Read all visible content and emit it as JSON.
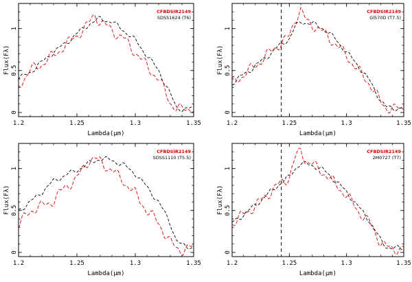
{
  "colors": {
    "target": "#e00000",
    "comparison": "#000000"
  },
  "chart_data": [
    {
      "type": "line",
      "xlabel": "Lambda(μm)",
      "ylabel": "Flux(Fλ)",
      "xlim": [
        1.2,
        1.35
      ],
      "ylim": [
        -0.05,
        1.3
      ],
      "xticks": [
        "1.2",
        "1.25",
        "1.3",
        "1.35"
      ],
      "yticks": [
        "0",
        "0.5",
        "1"
      ],
      "legend": [
        "CFBDSIR2149",
        "SDSS1624 (T6)"
      ],
      "vline": null,
      "series": [
        {
          "name": "CFBDSIR2149",
          "x": [
            1.2,
            1.21,
            1.22,
            1.23,
            1.24,
            1.25,
            1.26,
            1.265,
            1.27,
            1.28,
            1.29,
            1.3,
            1.31,
            1.32,
            1.33,
            1.335,
            1.34,
            1.35
          ],
          "y": [
            0.32,
            0.5,
            0.58,
            0.68,
            0.8,
            0.92,
            1.05,
            1.17,
            1.08,
            0.98,
            0.88,
            0.72,
            0.55,
            0.4,
            0.12,
            0.05,
            0.03,
            0.06
          ]
        },
        {
          "name": "SDSS1624 (T6)",
          "x": [
            1.2,
            1.21,
            1.22,
            1.23,
            1.24,
            1.25,
            1.26,
            1.27,
            1.28,
            1.29,
            1.3,
            1.31,
            1.32,
            1.33,
            1.335,
            1.34,
            1.35
          ],
          "y": [
            0.4,
            0.48,
            0.6,
            0.72,
            0.82,
            0.94,
            1.05,
            1.12,
            1.08,
            0.98,
            0.86,
            0.68,
            0.5,
            0.22,
            0.06,
            0.04,
            0.05
          ]
        }
      ]
    },
    {
      "type": "line",
      "xlabel": "Lambda(μm)",
      "ylabel": "Flux(Fλ)",
      "xlim": [
        1.2,
        1.35
      ],
      "ylim": [
        -0.05,
        1.3
      ],
      "xticks": [
        "1.2",
        "1.25",
        "1.3",
        "1.35"
      ],
      "yticks": [
        "0",
        "0.5",
        "1"
      ],
      "legend": [
        "CFBDSIR2149",
        "Gl570D (T7.5)"
      ],
      "vline": 1.243,
      "series": [
        {
          "name": "CFBDSIR2149",
          "x": [
            1.2,
            1.21,
            1.22,
            1.23,
            1.24,
            1.25,
            1.255,
            1.26,
            1.265,
            1.27,
            1.28,
            1.29,
            1.3,
            1.31,
            1.32,
            1.33,
            1.335,
            1.34,
            1.35
          ],
          "y": [
            0.35,
            0.45,
            0.55,
            0.68,
            0.8,
            0.9,
            1.12,
            1.22,
            1.08,
            1.05,
            0.95,
            0.82,
            0.68,
            0.5,
            0.35,
            0.12,
            0.06,
            0.04,
            0.05
          ]
        },
        {
          "name": "Gl570D (T7.5)",
          "x": [
            1.2,
            1.21,
            1.22,
            1.23,
            1.24,
            1.25,
            1.255,
            1.26,
            1.27,
            1.28,
            1.29,
            1.3,
            1.31,
            1.32,
            1.33,
            1.335,
            1.34,
            1.35
          ],
          "y": [
            0.35,
            0.45,
            0.55,
            0.66,
            0.78,
            0.88,
            1.02,
            1.08,
            1.06,
            1.0,
            0.88,
            0.72,
            0.56,
            0.38,
            0.14,
            0.06,
            0.05,
            0.05
          ]
        }
      ]
    },
    {
      "type": "line",
      "xlabel": "Lambda(μm)",
      "ylabel": "Flux(Fλ)",
      "xlim": [
        1.2,
        1.35
      ],
      "ylim": [
        -0.05,
        1.3
      ],
      "xticks": [
        "1.2",
        "1.25",
        "1.3",
        "1.35"
      ],
      "yticks": [
        "0",
        "0.5",
        "1"
      ],
      "legend": [
        "CFBDSIR2149",
        "SDSS1110 (T5.5)"
      ],
      "vline": null,
      "series": [
        {
          "name": "CFBDSIR2149",
          "x": [
            1.2,
            1.21,
            1.22,
            1.23,
            1.24,
            1.25,
            1.26,
            1.265,
            1.27,
            1.28,
            1.29,
            1.3,
            1.31,
            1.32,
            1.33,
            1.335,
            1.34,
            1.35
          ],
          "y": [
            0.32,
            0.5,
            0.55,
            0.62,
            0.78,
            0.88,
            1.1,
            1.12,
            1.08,
            0.98,
            0.85,
            0.7,
            0.5,
            0.35,
            0.12,
            0.05,
            0.03,
            0.06
          ]
        },
        {
          "name": "SDSS1110 (T5.5)",
          "x": [
            1.2,
            1.21,
            1.22,
            1.23,
            1.24,
            1.25,
            1.26,
            1.27,
            1.28,
            1.29,
            1.3,
            1.31,
            1.32,
            1.33,
            1.335,
            1.34,
            1.35
          ],
          "y": [
            0.5,
            0.6,
            0.72,
            0.85,
            0.92,
            0.98,
            1.06,
            1.12,
            1.1,
            1.04,
            0.94,
            0.78,
            0.6,
            0.35,
            0.15,
            0.08,
            0.06
          ]
        }
      ]
    },
    {
      "type": "line",
      "xlabel": "Lambda(μm)",
      "ylabel": "Flux(Fλ)",
      "xlim": [
        1.2,
        1.35
      ],
      "ylim": [
        -0.05,
        1.3
      ],
      "xticks": [
        "1.2",
        "1.25",
        "1.3",
        "1.35"
      ],
      "yticks": [
        "0",
        "0.5",
        "1"
      ],
      "legend": [
        "CFBDSIR2149",
        "2M0727 (T7)"
      ],
      "vline": 1.243,
      "series": [
        {
          "name": "CFBDSIR2149",
          "x": [
            1.2,
            1.21,
            1.22,
            1.23,
            1.24,
            1.25,
            1.255,
            1.26,
            1.265,
            1.27,
            1.28,
            1.29,
            1.3,
            1.31,
            1.32,
            1.33,
            1.335,
            1.34,
            1.35
          ],
          "y": [
            0.35,
            0.45,
            0.55,
            0.68,
            0.8,
            0.9,
            1.12,
            1.22,
            1.08,
            1.05,
            0.95,
            0.82,
            0.68,
            0.5,
            0.35,
            0.12,
            0.06,
            0.04,
            0.05
          ]
        },
        {
          "name": "2M0727 (T7)",
          "x": [
            1.2,
            1.21,
            1.22,
            1.23,
            1.24,
            1.25,
            1.255,
            1.26,
            1.27,
            1.28,
            1.29,
            1.3,
            1.31,
            1.32,
            1.33,
            1.335,
            1.34,
            1.35
          ],
          "y": [
            0.35,
            0.45,
            0.56,
            0.68,
            0.8,
            0.9,
            1.0,
            1.06,
            1.04,
            0.98,
            0.86,
            0.72,
            0.55,
            0.38,
            0.14,
            0.07,
            0.05,
            0.05
          ]
        }
      ]
    }
  ]
}
